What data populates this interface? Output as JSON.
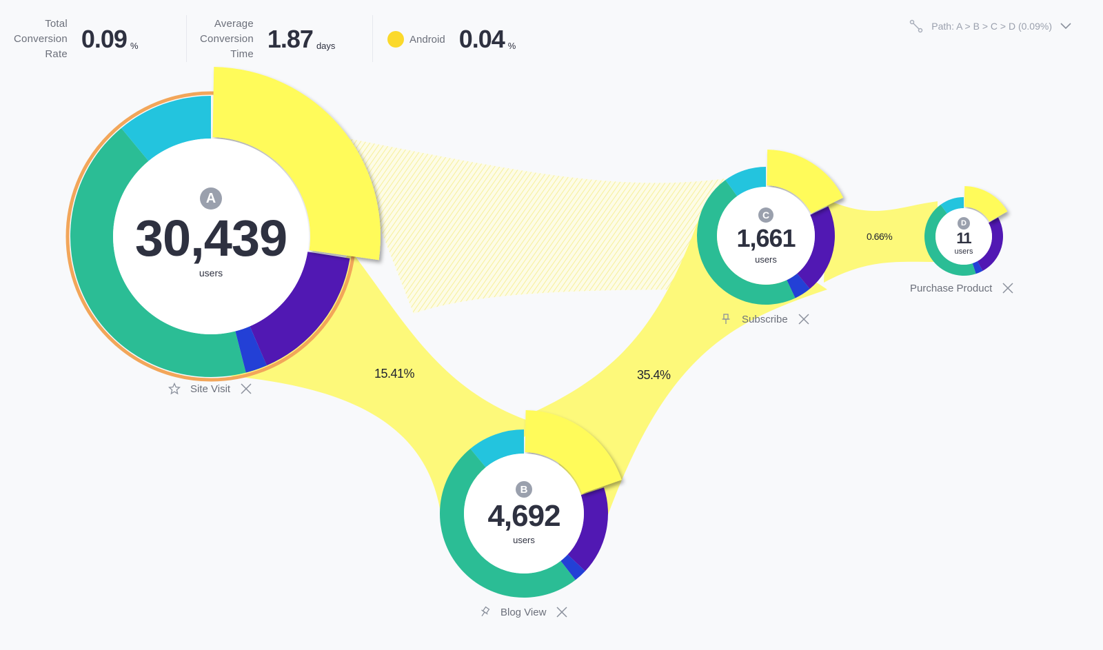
{
  "metrics": {
    "total_conversion": {
      "label_lines": [
        "Total",
        "Conversion",
        "Rate"
      ],
      "value": "0.09",
      "unit": "%"
    },
    "avg_conversion_time": {
      "label_lines": [
        "Average",
        "Conversion",
        "Time"
      ],
      "value": "1.87",
      "unit": "days"
    },
    "segment": {
      "name": "Android",
      "value": "0.04",
      "unit": "%",
      "color": "#fbd92b"
    }
  },
  "path_selector": {
    "label": "Path:  A > B > C > D (0.09%)"
  },
  "colors": {
    "highlight": "#fffb5a",
    "flow": "#fdf97a",
    "teal": "#2bbd95",
    "cyan": "#23c4de",
    "purple": "#5118b3",
    "blue": "#2340d6",
    "orange_ring": "#f2a65a",
    "badge": "#9aa0ad"
  },
  "nodes": [
    {
      "id": "A",
      "badge": "A",
      "count": "30,439",
      "unit": "users",
      "label": "Site Visit",
      "action_icon": "star-icon",
      "close_icon": "close-icon"
    },
    {
      "id": "B",
      "badge": "B",
      "count": "4,692",
      "unit": "users",
      "label": "Blog View",
      "action_icon": "pin-icon",
      "close_icon": "close-icon"
    },
    {
      "id": "C",
      "badge": "C",
      "count": "1,661",
      "unit": "users",
      "label": "Subscribe",
      "action_icon": "pin-icon",
      "close_icon": "close-icon"
    },
    {
      "id": "D",
      "badge": "D",
      "count": "11",
      "unit": "users",
      "label": "Purchase Product",
      "action_icon": null,
      "close_icon": "close-icon"
    }
  ],
  "flows": [
    {
      "from": "A",
      "to": "B",
      "percent": "15.41%"
    },
    {
      "from": "B",
      "to": "C",
      "percent": "35.4%"
    },
    {
      "from": "C",
      "to": "D",
      "percent": "0.66%"
    },
    {
      "from": "A",
      "to": "C",
      "percent": ""
    }
  ],
  "chart_data": {
    "type": "funnel",
    "segments": [
      "teal",
      "cyan",
      "highlight (Android)",
      "purple",
      "blue"
    ],
    "steps": [
      {
        "step": "A",
        "name": "Site Visit",
        "users": 30439,
        "shares": {
          "highlight": 0.275,
          "purple": 0.16,
          "blue": 0.025,
          "teal": 0.43,
          "cyan": 0.11
        }
      },
      {
        "step": "B",
        "name": "Blog View",
        "users": 4692,
        "shares": {
          "highlight": 0.2,
          "purple": 0.17,
          "blue": 0.025,
          "teal": 0.495,
          "cyan": 0.11
        }
      },
      {
        "step": "C",
        "name": "Subscribe",
        "users": 1661,
        "shares": {
          "highlight": 0.18,
          "purple": 0.21,
          "blue": 0.04,
          "teal": 0.47,
          "cyan": 0.1
        }
      },
      {
        "step": "D",
        "name": "Purchase Product",
        "users": 11,
        "shares": {
          "highlight": 0.17,
          "purple": 0.25,
          "blue": 0.03,
          "teal": 0.45,
          "cyan": 0.1
        }
      }
    ],
    "conversion": [
      {
        "from": "A",
        "to": "B",
        "percent": 15.41
      },
      {
        "from": "B",
        "to": "C",
        "percent": 35.4
      },
      {
        "from": "C",
        "to": "D",
        "percent": 0.66
      }
    ]
  }
}
